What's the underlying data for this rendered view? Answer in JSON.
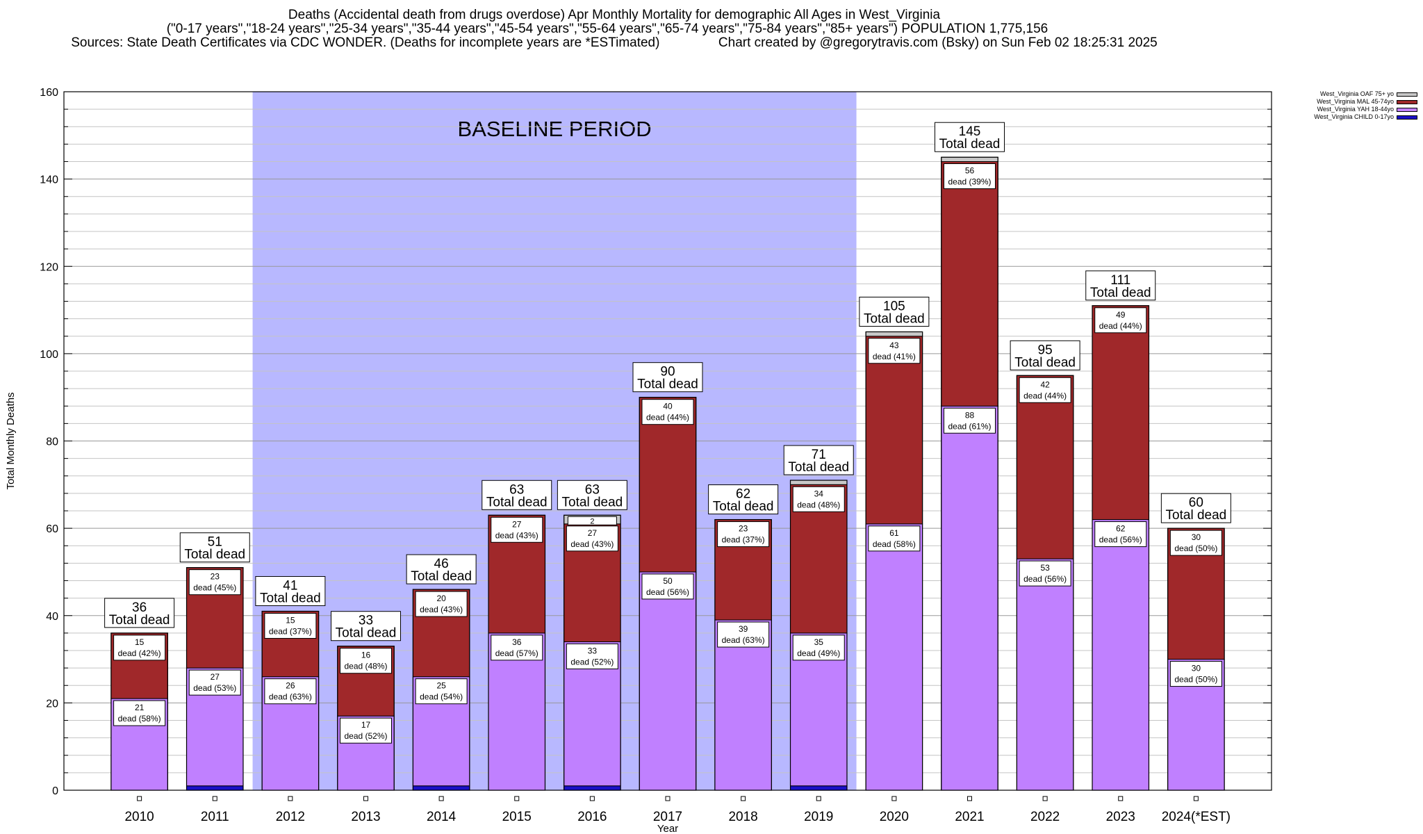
{
  "title": {
    "line1": "Deaths (Accidental death from drugs overdose) Apr Monthly Mortality for demographic All Ages in West_Virginia",
    "line2": "(\"0-17 years\",\"18-24 years\",\"25-34 years\",\"35-44 years\",\"45-54 years\",\"55-64 years\",\"65-74 years\",\"75-84 years\",\"85+ years\") POPULATION 1,775,156",
    "line3": "Sources: State Death Certificates via CDC WONDER. (Deaths for incomplete years are *ESTimated)                Chart created by @gregorytravis.com (Bsky) on Sun Feb 02 18:25:31 2025"
  },
  "chart_data": {
    "type": "bar",
    "stacked": true,
    "xlabel": "Year",
    "ylabel": "Total Monthly Deaths",
    "ylim": [
      0,
      160
    ],
    "yticks": [
      0,
      20,
      40,
      60,
      80,
      100,
      120,
      140,
      160
    ],
    "grid": true,
    "legend_position": "top-right",
    "categories": [
      "2010",
      "2011",
      "2012",
      "2013",
      "2014",
      "2015",
      "2016",
      "2017",
      "2018",
      "2019",
      "2020",
      "2021",
      "2022",
      "2023",
      "2024(*EST)"
    ],
    "series": [
      {
        "name": "West_Virginia CHILD 0-17yo",
        "color": "#1a10c8",
        "values": [
          0,
          1,
          0,
          0,
          1,
          0,
          1,
          0,
          0,
          1,
          0,
          0,
          0,
          0,
          0
        ]
      },
      {
        "name": "West_Virginia YAH 18-44yo",
        "color": "#c080ff",
        "values": [
          21,
          27,
          26,
          17,
          25,
          36,
          33,
          50,
          39,
          35,
          61,
          88,
          53,
          62,
          30
        ]
      },
      {
        "name": "West_Virginia MAL 45-74yo",
        "color": "#a0282a",
        "values": [
          15,
          23,
          15,
          16,
          20,
          27,
          27,
          40,
          23,
          34,
          43,
          56,
          42,
          49,
          30
        ]
      },
      {
        "name": "West_Virginia OAF 75+ yo",
        "color": "#c8c8c8",
        "values": [
          0,
          0,
          0,
          0,
          0,
          0,
          2,
          0,
          0,
          1,
          1,
          1,
          0,
          0,
          0
        ]
      }
    ],
    "totals": [
      36,
      51,
      41,
      33,
      46,
      63,
      63,
      90,
      62,
      71,
      105,
      145,
      95,
      111,
      60
    ],
    "yah_labels": [
      "dead (58%)",
      "dead (53%)",
      "dead (63%)",
      "dead (52%)",
      "dead (54%)",
      "dead (57%)",
      "dead (52%)",
      "dead (56%)",
      "dead (63%)",
      "dead (49%)",
      "dead (58%)",
      "dead (61%)",
      "dead (56%)",
      "dead (56%)",
      "dead (50%)"
    ],
    "mal_labels": [
      "dead (42%)",
      "dead (45%)",
      "dead (37%)",
      "dead (48%)",
      "dead (43%)",
      "dead (43%)",
      "dead (43%)",
      "dead (44%)",
      "dead (37%)",
      "dead (48%)",
      "dead (41%)",
      "dead (39%)",
      "dead (44%)",
      "dead (44%)",
      "dead (50%)"
    ],
    "total_suffix": "Total dead",
    "baseline": {
      "label": "BASELINE PERIOD",
      "from": "2012",
      "to": "2019",
      "color": "#b8b8ff"
    }
  }
}
